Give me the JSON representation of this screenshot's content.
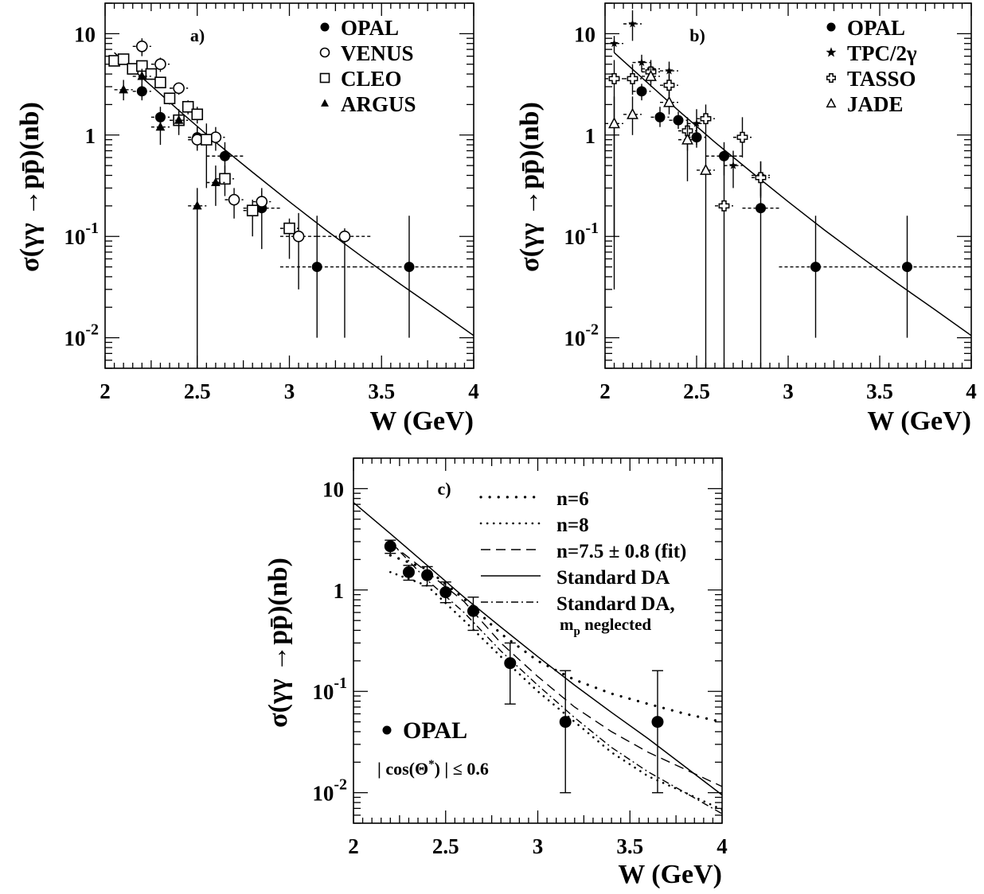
{
  "chart_data": [
    {
      "type": "scatter",
      "panel_label": "a)",
      "xlabel": "W (GeV)",
      "ylabel": "σ(γγ →pp̄)(nb)",
      "xlim": [
        2,
        4
      ],
      "ylim": [
        0.005,
        20
      ],
      "y_scale": "log",
      "x_ticks": [
        "2",
        "2.5",
        "3",
        "3.5",
        "4"
      ],
      "y_ticks": [
        {
          "value": 10,
          "base": "10",
          "exp": ""
        },
        {
          "value": 1,
          "base": "1",
          "exp": ""
        },
        {
          "value": 0.1,
          "base": "10",
          "exp": "-1"
        },
        {
          "value": 0.01,
          "base": "10",
          "exp": "-2"
        }
      ],
      "legend_position": "top-right",
      "series": [
        {
          "name": "OPAL",
          "marker": "filled-circle",
          "points": [
            {
              "x": 2.2,
              "y": 2.7,
              "ylo": 2.2,
              "yhi": 3.2,
              "xerr": 0.05
            },
            {
              "x": 2.3,
              "y": 1.5,
              "ylo": 1.2,
              "yhi": 1.9,
              "xerr": 0.05
            },
            {
              "x": 2.4,
              "y": 1.4,
              "ylo": 1.15,
              "yhi": 1.7,
              "xerr": 0.05
            },
            {
              "x": 2.5,
              "y": 0.95,
              "ylo": 0.75,
              "yhi": 1.2,
              "xerr": 0.05
            },
            {
              "x": 2.65,
              "y": 0.62,
              "ylo": 0.4,
              "yhi": 0.85,
              "xerr": 0.1
            },
            {
              "x": 2.85,
              "y": 0.19,
              "ylo": 0.075,
              "yhi": 0.3,
              "xerr": 0.1
            },
            {
              "x": 3.15,
              "y": 0.05,
              "ylo": 0.01,
              "yhi": 0.16,
              "xerr": 0.2
            },
            {
              "x": 3.65,
              "y": 0.05,
              "ylo": 0.01,
              "yhi": 0.16,
              "xerr": 0.3
            }
          ]
        },
        {
          "name": "VENUS",
          "marker": "open-circle",
          "points": [
            {
              "x": 2.2,
              "y": 7.5,
              "ylo": 6.0,
              "yhi": 9.0,
              "xerr": 0.05
            },
            {
              "x": 2.3,
              "y": 5.0,
              "ylo": 4.2,
              "yhi": 5.8,
              "xerr": 0.05
            },
            {
              "x": 2.4,
              "y": 2.9,
              "ylo": 2.5,
              "yhi": 3.3,
              "xerr": 0.05
            },
            {
              "x": 2.5,
              "y": 0.9,
              "ylo": 0.7,
              "yhi": 1.2,
              "xerr": 0.05
            },
            {
              "x": 2.6,
              "y": 0.95,
              "ylo": 0.7,
              "yhi": 1.2,
              "xerr": 0.05
            },
            {
              "x": 2.7,
              "y": 0.23,
              "ylo": 0.15,
              "yhi": 0.3,
              "xerr": 0.05
            },
            {
              "x": 2.85,
              "y": 0.22,
              "ylo": 0.17,
              "yhi": 0.28,
              "xerr": 0.05
            },
            {
              "x": 3.05,
              "y": 0.1,
              "ylo": 0.03,
              "yhi": 0.17,
              "xerr": 0.1
            },
            {
              "x": 3.3,
              "y": 0.1,
              "ylo": 0.01,
              "yhi": 0.12,
              "xerr": 0.15
            }
          ]
        },
        {
          "name": "CLEO",
          "marker": "open-square",
          "points": [
            {
              "x": 2.05,
              "y": 5.4,
              "ylo": 4.8,
              "yhi": 6.0,
              "xerr": 0.025
            },
            {
              "x": 2.1,
              "y": 5.6,
              "ylo": 5.0,
              "yhi": 6.3,
              "xerr": 0.025
            },
            {
              "x": 2.15,
              "y": 4.5,
              "ylo": 4.0,
              "yhi": 5.0,
              "xerr": 0.025
            },
            {
              "x": 2.2,
              "y": 4.8,
              "ylo": 4.2,
              "yhi": 5.3,
              "xerr": 0.025
            },
            {
              "x": 2.25,
              "y": 4.0,
              "ylo": 3.5,
              "yhi": 4.5,
              "xerr": 0.025
            },
            {
              "x": 2.3,
              "y": 3.3,
              "ylo": 2.9,
              "yhi": 3.7,
              "xerr": 0.025
            },
            {
              "x": 2.35,
              "y": 2.3,
              "ylo": 2.0,
              "yhi": 2.6,
              "xerr": 0.025
            },
            {
              "x": 2.4,
              "y": 1.4,
              "ylo": 1.2,
              "yhi": 1.6,
              "xerr": 0.025
            },
            {
              "x": 2.45,
              "y": 1.9,
              "ylo": 1.6,
              "yhi": 2.2,
              "xerr": 0.025
            },
            {
              "x": 2.5,
              "y": 1.6,
              "ylo": 1.3,
              "yhi": 1.9,
              "xerr": 0.025
            },
            {
              "x": 2.55,
              "y": 0.9,
              "ylo": 0.3,
              "yhi": 1.3,
              "xerr": 0.025
            },
            {
              "x": 2.65,
              "y": 0.37,
              "ylo": 0.25,
              "yhi": 0.5,
              "xerr": 0.05
            },
            {
              "x": 2.8,
              "y": 0.18,
              "ylo": 0.1,
              "yhi": 0.23,
              "xerr": 0.05
            },
            {
              "x": 3.0,
              "y": 0.12,
              "ylo": 0.06,
              "yhi": 0.15,
              "xerr": 0.05
            }
          ]
        },
        {
          "name": "ARGUS",
          "marker": "filled-triangle",
          "points": [
            {
              "x": 2.1,
              "y": 2.8,
              "ylo": 2.2,
              "yhi": 3.5,
              "xerr": 0.05
            },
            {
              "x": 2.2,
              "y": 3.8,
              "ylo": 3.0,
              "yhi": 4.5,
              "xerr": 0.05
            },
            {
              "x": 2.3,
              "y": 1.2,
              "ylo": 0.8,
              "yhi": 1.6,
              "xerr": 0.05
            },
            {
              "x": 2.4,
              "y": 1.4,
              "ylo": 1.0,
              "yhi": 1.8,
              "xerr": 0.05
            },
            {
              "x": 2.5,
              "y": 0.2,
              "ylo": 0.005,
              "yhi": 0.3,
              "xerr": 0.05
            },
            {
              "x": 2.6,
              "y": 0.34,
              "ylo": 0.2,
              "yhi": 0.5,
              "xerr": 0.05
            }
          ]
        }
      ],
      "curves": [
        {
          "style": "solid",
          "x": [
            2.05,
            2.2,
            2.4,
            2.6,
            2.8,
            3.0,
            3.2,
            3.4,
            3.6,
            3.8,
            4.0
          ],
          "y": [
            6.5,
            3.7,
            1.75,
            0.85,
            0.43,
            0.22,
            0.115,
            0.062,
            0.034,
            0.019,
            0.0105
          ]
        }
      ]
    },
    {
      "type": "scatter",
      "panel_label": "b)",
      "xlabel": "W (GeV)",
      "ylabel": "σ(γγ →pp̄)(nb)",
      "xlim": [
        2,
        4
      ],
      "ylim": [
        0.005,
        20
      ],
      "y_scale": "log",
      "x_ticks": [
        "2",
        "2.5",
        "3",
        "3.5",
        "4"
      ],
      "y_ticks": [
        {
          "value": 10,
          "base": "10",
          "exp": ""
        },
        {
          "value": 1,
          "base": "1",
          "exp": ""
        },
        {
          "value": 0.1,
          "base": "10",
          "exp": "-1"
        },
        {
          "value": 0.01,
          "base": "10",
          "exp": "-2"
        }
      ],
      "legend_position": "top-right",
      "series": [
        {
          "name": "OPAL",
          "marker": "filled-circle",
          "points": [
            {
              "x": 2.2,
              "y": 2.7,
              "ylo": 2.2,
              "yhi": 3.2,
              "xerr": 0.05
            },
            {
              "x": 2.3,
              "y": 1.5,
              "ylo": 1.2,
              "yhi": 1.9,
              "xerr": 0.05
            },
            {
              "x": 2.4,
              "y": 1.4,
              "ylo": 1.15,
              "yhi": 1.7,
              "xerr": 0.05
            },
            {
              "x": 2.5,
              "y": 0.95,
              "ylo": 0.75,
              "yhi": 1.2,
              "xerr": 0.05
            },
            {
              "x": 2.65,
              "y": 0.62,
              "ylo": 0.4,
              "yhi": 0.85,
              "xerr": 0.1
            },
            {
              "x": 2.85,
              "y": 0.19,
              "ylo": 0.005,
              "yhi": 0.3,
              "xerr": 0.1
            },
            {
              "x": 3.15,
              "y": 0.05,
              "ylo": 0.01,
              "yhi": 0.16,
              "xerr": 0.2
            },
            {
              "x": 3.65,
              "y": 0.05,
              "ylo": 0.01,
              "yhi": 0.16,
              "xerr": 0.3
            }
          ]
        },
        {
          "name": "TPC/2γ",
          "marker": "star",
          "points": [
            {
              "x": 2.05,
              "y": 8.0,
              "ylo": 6.5,
              "yhi": 9.5,
              "xerr": 0.05
            },
            {
              "x": 2.15,
              "y": 12.5,
              "ylo": 8.5,
              "yhi": 17.0,
              "xerr": 0.05
            },
            {
              "x": 2.2,
              "y": 5.2,
              "ylo": 4.2,
              "yhi": 6.2,
              "xerr": 0.05
            },
            {
              "x": 2.25,
              "y": 4.5,
              "ylo": 3.5,
              "yhi": 5.5,
              "xerr": 0.05
            },
            {
              "x": 2.35,
              "y": 4.3,
              "ylo": 3.3,
              "yhi": 5.3,
              "xerr": 0.05
            },
            {
              "x": 2.5,
              "y": 1.3,
              "ylo": 0.8,
              "yhi": 1.8,
              "xerr": 0.05
            },
            {
              "x": 2.7,
              "y": 0.5,
              "ylo": 0.3,
              "yhi": 0.7,
              "xerr": 0.05
            },
            {
              "x": 2.85,
              "y": 0.4,
              "ylo": 0.25,
              "yhi": 0.55,
              "xerr": 0.05
            }
          ]
        },
        {
          "name": "TASSO",
          "marker": "open-cross",
          "points": [
            {
              "x": 2.05,
              "y": 3.6,
              "ylo": 0.1,
              "yhi": 5.5,
              "xerr": 0.05
            },
            {
              "x": 2.15,
              "y": 3.6,
              "ylo": 2.5,
              "yhi": 5.0,
              "xerr": 0.05
            },
            {
              "x": 2.25,
              "y": 4.2,
              "ylo": 3.3,
              "yhi": 5.2,
              "xerr": 0.05
            },
            {
              "x": 2.35,
              "y": 3.1,
              "ylo": 2.4,
              "yhi": 3.9,
              "xerr": 0.05
            },
            {
              "x": 2.45,
              "y": 1.1,
              "ylo": 0.7,
              "yhi": 1.5,
              "xerr": 0.05
            },
            {
              "x": 2.55,
              "y": 1.45,
              "ylo": 0.9,
              "yhi": 2.0,
              "xerr": 0.05
            },
            {
              "x": 2.65,
              "y": 0.2,
              "ylo": 0.005,
              "yhi": 0.6,
              "xerr": 0.05
            },
            {
              "x": 2.75,
              "y": 0.95,
              "ylo": 0.6,
              "yhi": 1.5,
              "xerr": 0.05
            },
            {
              "x": 2.85,
              "y": 0.38,
              "ylo": 0.24,
              "yhi": 0.55,
              "xerr": 0.05
            }
          ]
        },
        {
          "name": "JADE",
          "marker": "open-triangle",
          "points": [
            {
              "x": 2.05,
              "y": 1.3,
              "ylo": 0.03,
              "yhi": 2.4,
              "xerr": 0.05
            },
            {
              "x": 2.15,
              "y": 1.6,
              "ylo": 1.0,
              "yhi": 2.4,
              "xerr": 0.05
            },
            {
              "x": 2.25,
              "y": 3.8,
              "ylo": 3.0,
              "yhi": 4.6,
              "xerr": 0.05
            },
            {
              "x": 2.35,
              "y": 2.1,
              "ylo": 1.6,
              "yhi": 2.7,
              "xerr": 0.05
            },
            {
              "x": 2.45,
              "y": 0.9,
              "ylo": 0.35,
              "yhi": 1.4,
              "xerr": 0.05
            },
            {
              "x": 2.55,
              "y": 0.45,
              "ylo": 0.005,
              "yhi": 0.9,
              "xerr": 0.05
            }
          ]
        }
      ],
      "curves": [
        {
          "style": "solid",
          "x": [
            2.05,
            2.2,
            2.4,
            2.6,
            2.8,
            3.0,
            3.2,
            3.4,
            3.6,
            3.8,
            4.0
          ],
          "y": [
            6.5,
            3.7,
            1.75,
            0.85,
            0.43,
            0.22,
            0.115,
            0.062,
            0.034,
            0.019,
            0.0105
          ]
        }
      ]
    },
    {
      "type": "line",
      "panel_label": "c)",
      "xlabel": "W (GeV)",
      "ylabel": "σ(γγ →pp̄)(nb)",
      "xlim": [
        2,
        4
      ],
      "ylim": [
        0.005,
        20
      ],
      "y_scale": "log",
      "x_ticks": [
        "2",
        "2.5",
        "3",
        "3.5",
        "4"
      ],
      "y_ticks": [
        {
          "value": 10,
          "base": "10",
          "exp": ""
        },
        {
          "value": 1,
          "base": "1",
          "exp": ""
        },
        {
          "value": 0.1,
          "base": "10",
          "exp": "-1"
        },
        {
          "value": 0.01,
          "base": "10",
          "exp": "-2"
        }
      ],
      "legend_position": "top-right",
      "curves": [
        {
          "name": "n=6",
          "style": "dotted-sparse",
          "x": [
            2.2,
            2.4,
            2.6,
            2.8,
            3.0,
            3.2,
            3.4,
            3.6,
            3.8,
            4.0
          ],
          "y": [
            2.2,
            1.6,
            0.82,
            0.37,
            0.2,
            0.13,
            0.095,
            0.075,
            0.06,
            0.05
          ]
        },
        {
          "name": "n=8",
          "style": "dotted",
          "x": [
            2.2,
            2.4,
            2.6,
            2.8,
            3.0,
            3.2,
            3.4,
            3.6,
            3.8,
            4.0
          ],
          "y": [
            1.5,
            1.1,
            0.5,
            0.22,
            0.1,
            0.05,
            0.025,
            0.0145,
            0.01,
            0.0068
          ]
        },
        {
          "name": "n=7.5 ± 0.8 (fit)",
          "style": "dashed",
          "x": [
            2.2,
            2.4,
            2.6,
            2.8,
            3.0,
            3.2,
            3.4,
            3.6,
            3.8,
            4.0
          ],
          "y": [
            2.9,
            1.5,
            0.77,
            0.3,
            0.14,
            0.07,
            0.04,
            0.025,
            0.017,
            0.0115
          ]
        },
        {
          "name": "Standard DA",
          "style": "solid",
          "x": [
            2.0,
            2.2,
            2.4,
            2.6,
            2.8,
            3.0,
            3.2,
            3.4,
            3.6,
            3.8,
            4.0
          ],
          "y": [
            7.3,
            3.6,
            1.75,
            0.85,
            0.43,
            0.22,
            0.115,
            0.062,
            0.034,
            0.018,
            0.0095
          ]
        },
        {
          "name": "Standard DA,",
          "name_line2": "m",
          "name_sub": "p",
          "name_rest": " neglected",
          "style": "dashdot",
          "x": [
            2.2,
            2.4,
            2.6,
            2.8,
            3.0,
            3.2,
            3.4,
            3.6,
            3.8,
            4.0
          ],
          "y": [
            3.0,
            1.25,
            0.6,
            0.25,
            0.115,
            0.055,
            0.028,
            0.016,
            0.01,
            0.0062
          ]
        }
      ],
      "series": [
        {
          "name": "OPAL",
          "marker": "filled-circle",
          "points": [
            {
              "x": 2.2,
              "y": 2.7,
              "ylo": 2.3,
              "yhi": 3.1,
              "xerr": 0
            },
            {
              "x": 2.3,
              "y": 1.5,
              "ylo": 1.25,
              "yhi": 1.75,
              "xerr": 0
            },
            {
              "x": 2.4,
              "y": 1.4,
              "ylo": 1.1,
              "yhi": 1.7,
              "xerr": 0
            },
            {
              "x": 2.5,
              "y": 0.95,
              "ylo": 0.75,
              "yhi": 1.2,
              "xerr": 0
            },
            {
              "x": 2.65,
              "y": 0.62,
              "ylo": 0.4,
              "yhi": 0.85,
              "xerr": 0
            },
            {
              "x": 2.85,
              "y": 0.19,
              "ylo": 0.075,
              "yhi": 0.3,
              "xerr": 0
            },
            {
              "x": 3.15,
              "y": 0.05,
              "ylo": 0.01,
              "yhi": 0.16,
              "xerr": 0
            },
            {
              "x": 3.65,
              "y": 0.05,
              "ylo": 0.01,
              "yhi": 0.16,
              "xerr": 0
            }
          ]
        }
      ],
      "bottom_legend": {
        "label": "OPAL",
        "cut": "| cos(Θ",
        "cut_sup": "*",
        "cut_end": ") | ≤ 0.6"
      }
    }
  ]
}
